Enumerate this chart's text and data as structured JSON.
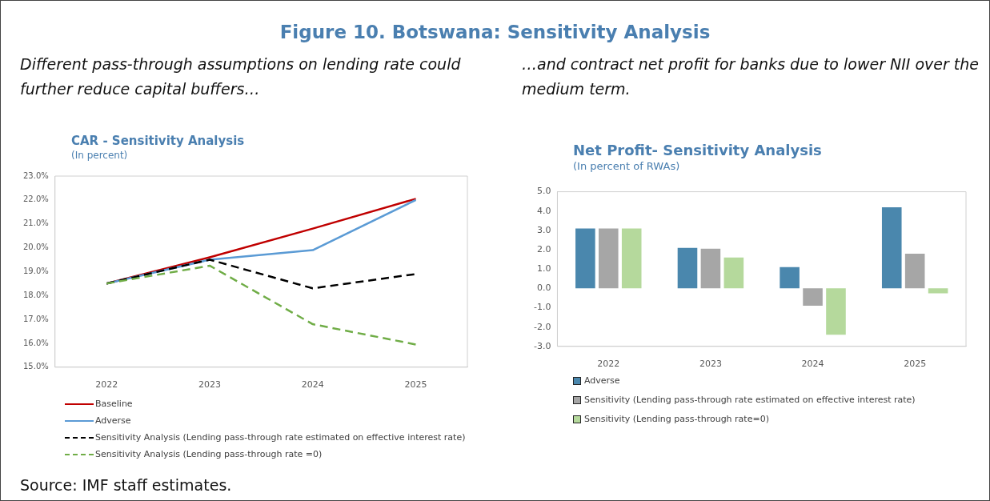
{
  "chart_data": [
    {
      "type": "line",
      "title": "CAR - Sensitivity Analysis",
      "subtitle": "(In percent)",
      "categories": [
        "2022",
        "2023",
        "2024",
        "2025"
      ],
      "series": [
        {
          "name": "Baseline",
          "color": "#c00000",
          "values": [
            18.5,
            19.6,
            20.8,
            22.05
          ]
        },
        {
          "name": "Adverse",
          "color": "#5b9bd5",
          "values": [
            18.5,
            19.5,
            19.9,
            22.0
          ]
        },
        {
          "name": "Sensitivity Analysis (Lending pass-through rate estimated on effective interest rate)",
          "color": "#000000",
          "line_style": "dashed",
          "values": [
            18.5,
            19.5,
            18.3,
            18.9
          ]
        },
        {
          "name": "Sensitivity Analysis (Lending pass-through rate =0)",
          "color": "#70ad47",
          "line_style": "dashed",
          "values": [
            18.5,
            19.25,
            16.8,
            15.95
          ]
        }
      ],
      "ylim": [
        15,
        23
      ],
      "yticks": [
        {
          "value": 15,
          "label": "15.0%"
        },
        {
          "value": 16,
          "label": "16.0%"
        },
        {
          "value": 17,
          "label": "17.0%"
        },
        {
          "value": 18,
          "label": "18.0%"
        },
        {
          "value": 19,
          "label": "19.0%"
        },
        {
          "value": 20,
          "label": "20.0%"
        },
        {
          "value": 21,
          "label": "21.0%"
        },
        {
          "value": 22,
          "label": "22.0%"
        },
        {
          "value": 23,
          "label": "23.0%"
        }
      ],
      "grid": false,
      "legend": "bottom",
      "marker": "none",
      "line_style": "solid",
      "annotations": [
        "Figure 10. Botswana: Sensitivity Analysis",
        "Different pass-through assumptions on lending rate could further reduce capital buffers…",
        "Source: IMF staff estimates."
      ]
    },
    {
      "type": "bar",
      "title": "Net Profit- Sensitivity Analysis",
      "subtitle": "(In percent of RWAs)",
      "categories": [
        "2022",
        "2023",
        "2024",
        "2025"
      ],
      "series": [
        {
          "name": "Adverse",
          "color": "#4a87ad",
          "values": [
            3.1,
            2.1,
            1.1,
            4.2
          ]
        },
        {
          "name": "Sensitivity (Lending pass-through rate estimated on effective interest rate)",
          "color": "#a6a6a6",
          "values": [
            3.1,
            2.05,
            -0.9,
            1.8
          ]
        },
        {
          "name": "Sensitivity (Lending pass-through rate=0)",
          "color": "#b5d99c",
          "values": [
            3.1,
            1.6,
            -2.4,
            -0.25
          ]
        }
      ],
      "ylim": [
        -3,
        5
      ],
      "yticks": [
        {
          "value": -3,
          "label": "-3.0"
        },
        {
          "value": -2,
          "label": "-2.0"
        },
        {
          "value": -1,
          "label": "-1.0"
        },
        {
          "value": 0,
          "label": "0.0"
        },
        {
          "value": 1,
          "label": "1.0"
        },
        {
          "value": 2,
          "label": "2.0"
        },
        {
          "value": 3,
          "label": "3.0"
        },
        {
          "value": 4,
          "label": "4.0"
        },
        {
          "value": 5,
          "label": "5.0"
        }
      ],
      "grid": false,
      "legend": "bottom",
      "annotations": [
        "…and contract net profit for banks due to lower NII over the medium term."
      ]
    }
  ]
}
